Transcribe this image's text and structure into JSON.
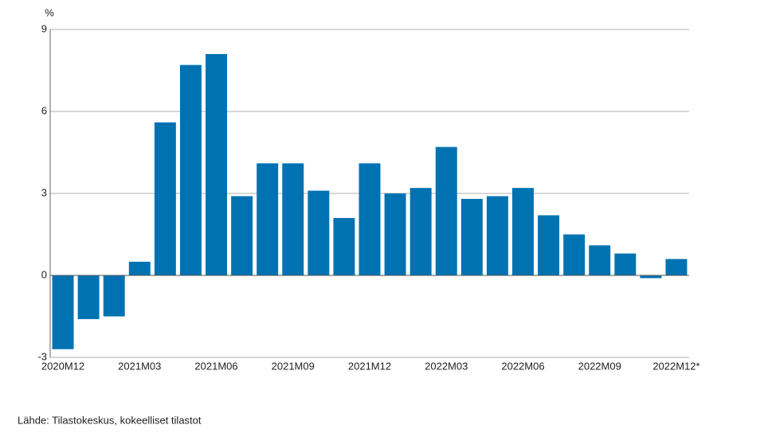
{
  "chart_data": {
    "type": "bar",
    "y_unit": "%",
    "categories": [
      "2020M12",
      null,
      null,
      "2021M03",
      null,
      null,
      "2021M06",
      null,
      null,
      "2021M09",
      null,
      null,
      "2021M12",
      null,
      null,
      "2022M03",
      null,
      null,
      "2022M06",
      null,
      null,
      "2022M09",
      null,
      null,
      "2022M12*"
    ],
    "values": [
      -2.7,
      -1.6,
      -1.5,
      0.5,
      5.6,
      7.7,
      8.1,
      2.9,
      4.1,
      4.1,
      3.1,
      2.1,
      4.1,
      3.0,
      3.2,
      4.7,
      2.8,
      2.9,
      3.2,
      2.2,
      1.5,
      1.1,
      0.8,
      -0.1,
      0.6
    ],
    "color": "#0072b2",
    "ylim": [
      -3,
      9
    ],
    "yticks": [
      -3,
      0,
      3,
      6,
      9
    ],
    "grid": true,
    "source": "Lähde: Tilastokeskus, kokeelliset tilastot"
  }
}
